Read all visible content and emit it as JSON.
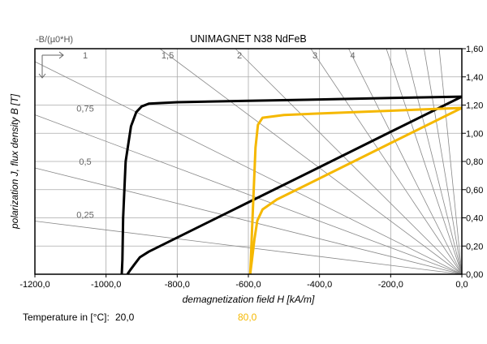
{
  "chart_data": {
    "type": "line",
    "title": "UNIMAGNET N38 NdFeB",
    "xlabel": "demagnetization field H [kA/m]",
    "ylabel": "polarization J, flux density B [T]",
    "corner_label": "-B/(µ0*H)",
    "xlim": [
      -1200,
      0
    ],
    "ylim": [
      0,
      1.6
    ],
    "x_ticks": [
      "-1200,0",
      "-1000,0",
      "-800,0",
      "-600,0",
      "-400,0",
      "-200,0",
      "0,0"
    ],
    "x_tick_values": [
      -1200,
      -1000,
      -800,
      -600,
      -400,
      -200,
      0
    ],
    "y_ticks": [
      "0,00",
      "0,20",
      "0,40",
      "0,60",
      "0,80",
      "1,00",
      "1,20",
      "1,40",
      "1,60"
    ],
    "y_tick_values": [
      0,
      0.2,
      0.4,
      0.6,
      0.8,
      1.0,
      1.2,
      1.4,
      1.6
    ],
    "grid_x": [
      -1000,
      -800,
      -600,
      -400,
      -200
    ],
    "grid_y": [
      0.2,
      0.4,
      0.6,
      0.8,
      1.0,
      1.2,
      1.4
    ],
    "load_lines": [
      {
        "label": "0,25",
        "slope": 0.25
      },
      {
        "label": "0,5",
        "slope": 0.5
      },
      {
        "label": "0,75",
        "slope": 0.75
      },
      {
        "label": "1",
        "slope": 1
      },
      {
        "label": "1,5",
        "slope": 1.5
      },
      {
        "label": "2",
        "slope": 2
      },
      {
        "label": "3",
        "slope": 3
      },
      {
        "label": "4",
        "slope": 4
      },
      {
        "label": "",
        "slope": 6
      },
      {
        "label": "",
        "slope": 8
      },
      {
        "label": "",
        "slope": 12
      },
      {
        "label": "",
        "slope": 20
      }
    ],
    "series": [
      {
        "name": "20,0",
        "color": "#000000",
        "J_curve": {
          "x": [
            0,
            -200,
            -400,
            -600,
            -800,
            -880,
            -900,
            -915,
            -930,
            -945,
            -952,
            -954,
            -956
          ],
          "y": [
            1.26,
            1.25,
            1.24,
            1.23,
            1.22,
            1.21,
            1.19,
            1.15,
            1.05,
            0.8,
            0.4,
            0.1,
            0.0
          ]
        },
        "B_curve": {
          "x": [
            0,
            -200,
            -400,
            -600,
            -800,
            -880,
            -905,
            -920,
            -932,
            -940
          ],
          "y": [
            1.26,
            1.01,
            0.76,
            0.51,
            0.26,
            0.16,
            0.12,
            0.07,
            0.03,
            0.0
          ]
        }
      },
      {
        "name": "80,0",
        "color": "#f5b800",
        "J_curve": {
          "x": [
            0,
            -200,
            -400,
            -500,
            -560,
            -573,
            -580,
            -585,
            -590,
            -593,
            -595
          ],
          "y": [
            1.18,
            1.16,
            1.14,
            1.13,
            1.11,
            1.06,
            0.9,
            0.6,
            0.3,
            0.1,
            0.0
          ]
        },
        "B_curve": {
          "x": [
            0,
            -200,
            -400,
            -520,
            -560,
            -575,
            -583,
            -590,
            -595
          ],
          "y": [
            1.18,
            0.93,
            0.68,
            0.53,
            0.46,
            0.38,
            0.25,
            0.1,
            0.0
          ]
        }
      }
    ]
  },
  "legend": {
    "label": "Temperature in [°C]:",
    "entries": [
      {
        "text": "20,0",
        "color": "#000000"
      },
      {
        "text": "80,0",
        "color": "#f5b800"
      }
    ]
  }
}
